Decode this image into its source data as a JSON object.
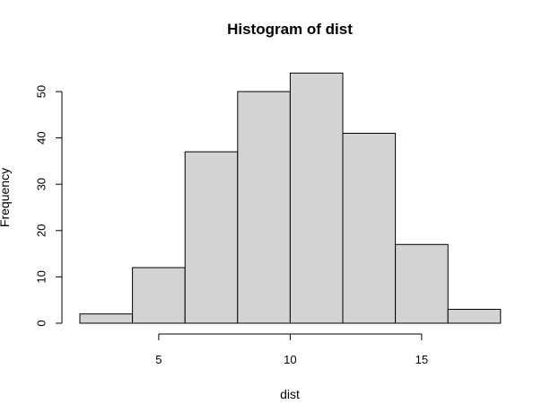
{
  "chart_data": {
    "type": "bar",
    "title": "Histogram of dist",
    "xlabel": "dist",
    "ylabel": "Frequency",
    "bins": [
      {
        "from": 2,
        "to": 4,
        "count": 2
      },
      {
        "from": 4,
        "to": 6,
        "count": 12
      },
      {
        "from": 6,
        "to": 8,
        "count": 37
      },
      {
        "from": 8,
        "to": 10,
        "count": 50
      },
      {
        "from": 10,
        "to": 12,
        "count": 54
      },
      {
        "from": 12,
        "to": 14,
        "count": 41
      },
      {
        "from": 14,
        "to": 16,
        "count": 17
      },
      {
        "from": 16,
        "to": 18,
        "count": 3
      }
    ],
    "xticks": [
      5,
      10,
      15
    ],
    "yticks": [
      0,
      10,
      20,
      30,
      40,
      50
    ],
    "xlim": [
      2,
      18
    ],
    "ylim": [
      0,
      54
    ],
    "colors": {
      "bar_fill": "#d3d3d3",
      "bar_stroke": "#000000"
    },
    "grid": false,
    "legend": "none"
  }
}
